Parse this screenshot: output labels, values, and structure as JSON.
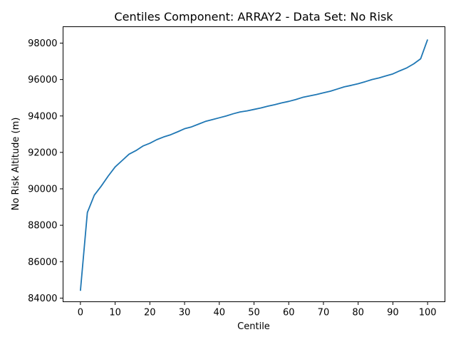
{
  "chart_data": {
    "type": "line",
    "title": "Centiles Component: ARRAY2 - Data Set: No Risk",
    "xlabel": "Centile",
    "ylabel": "No Risk Altitude (m)",
    "xlim": [
      -5,
      105
    ],
    "ylim": [
      83800,
      98900
    ],
    "xticks": [
      0,
      10,
      20,
      30,
      40,
      50,
      60,
      70,
      80,
      90,
      100
    ],
    "yticks": [
      84000,
      86000,
      88000,
      90000,
      92000,
      94000,
      96000,
      98000
    ],
    "xtick_labels": [
      "0",
      "10",
      "20",
      "30",
      "40",
      "50",
      "60",
      "70",
      "80",
      "90",
      "100"
    ],
    "ytick_labels": [
      "84000",
      "86000",
      "88000",
      "90000",
      "92000",
      "94000",
      "96000",
      "98000"
    ],
    "grid": false,
    "series": [
      {
        "color": "#1f77b4",
        "x": [
          0,
          2,
          4,
          6,
          8,
          10,
          12,
          14,
          16,
          18,
          20,
          22,
          24,
          26,
          28,
          30,
          32,
          34,
          36,
          38,
          40,
          42,
          44,
          46,
          48,
          50,
          52,
          54,
          56,
          58,
          60,
          62,
          64,
          66,
          68,
          70,
          72,
          74,
          76,
          78,
          80,
          82,
          84,
          86,
          88,
          90,
          92,
          94,
          96,
          98,
          100
        ],
        "y": [
          84400,
          88700,
          89650,
          90150,
          90700,
          91200,
          91550,
          91900,
          92100,
          92350,
          92500,
          92700,
          92850,
          92970,
          93130,
          93300,
          93400,
          93550,
          93700,
          93800,
          93900,
          94000,
          94120,
          94220,
          94280,
          94360,
          94440,
          94540,
          94620,
          94720,
          94800,
          94900,
          95020,
          95100,
          95180,
          95270,
          95360,
          95480,
          95600,
          95680,
          95770,
          95880,
          96000,
          96090,
          96200,
          96310,
          96480,
          96640,
          96860,
          97140,
          98200
        ]
      }
    ]
  }
}
